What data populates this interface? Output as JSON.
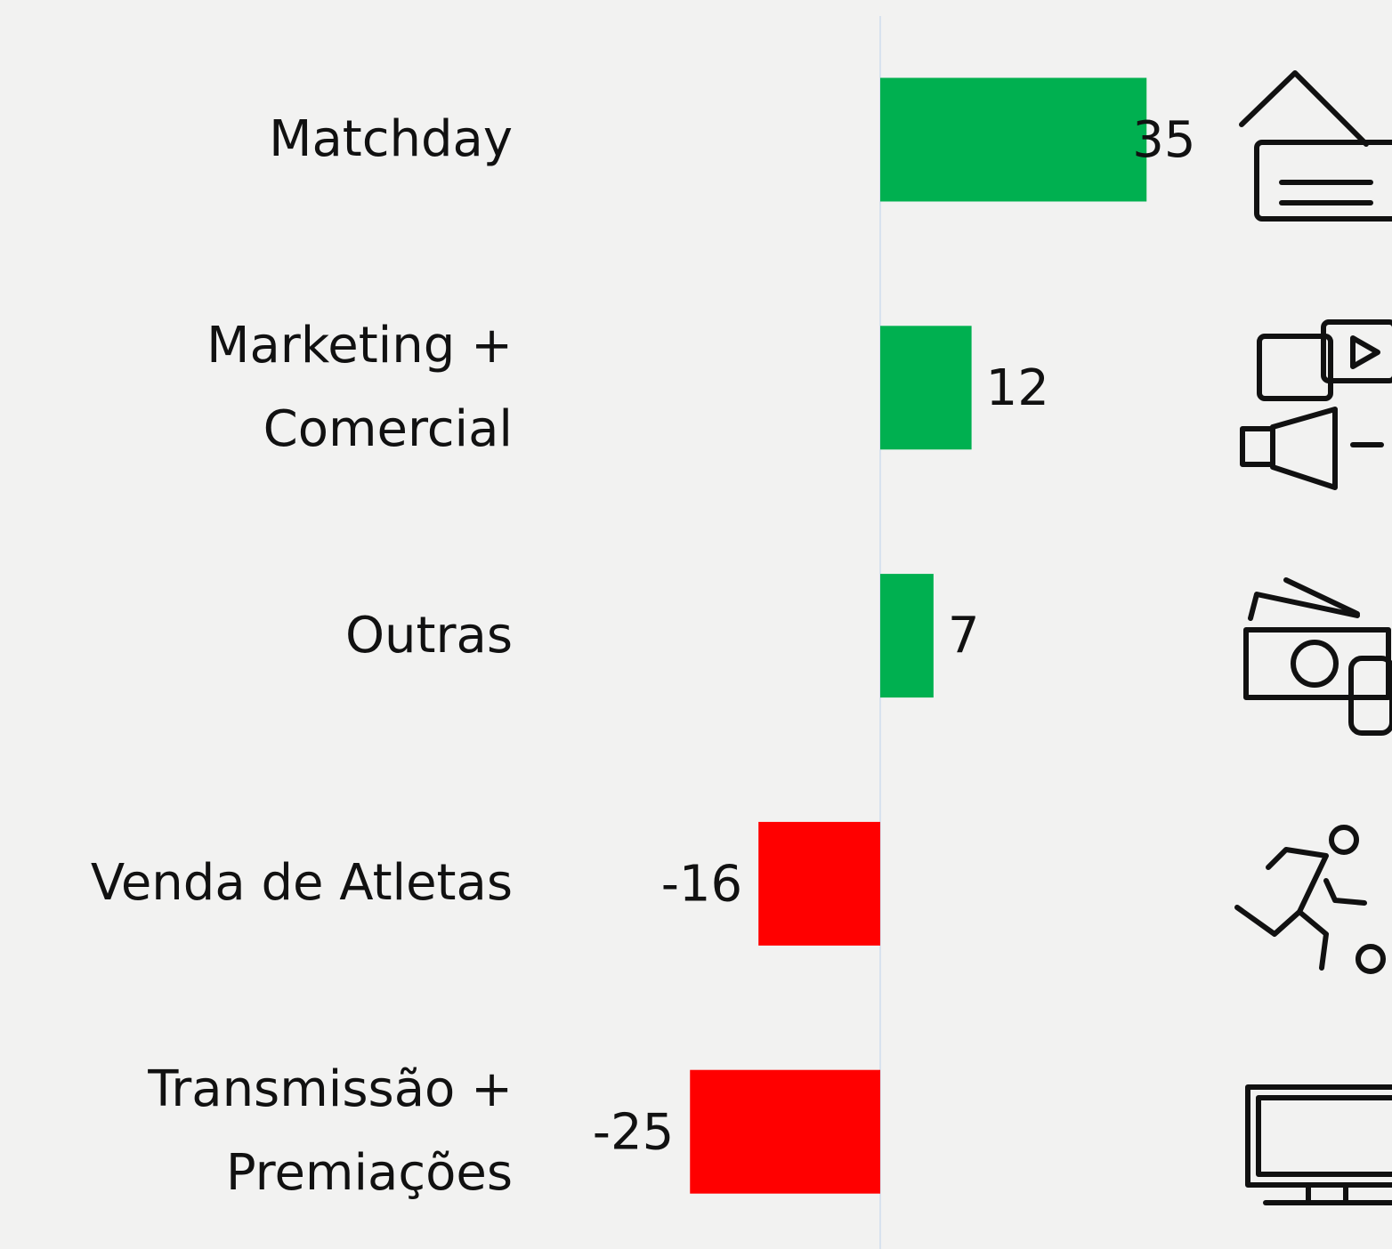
{
  "chart_data": {
    "type": "bar",
    "orientation": "horizontal",
    "categories": [
      "Matchday",
      "Marketing + Comercial",
      "Outras",
      "Venda de Atletas",
      "Transmissão + Premiações"
    ],
    "values": [
      35,
      12,
      7,
      -16,
      -25
    ],
    "colors": [
      "#00b050",
      "#00b050",
      "#00b050",
      "#ff0000",
      "#ff0000"
    ]
  }
}
